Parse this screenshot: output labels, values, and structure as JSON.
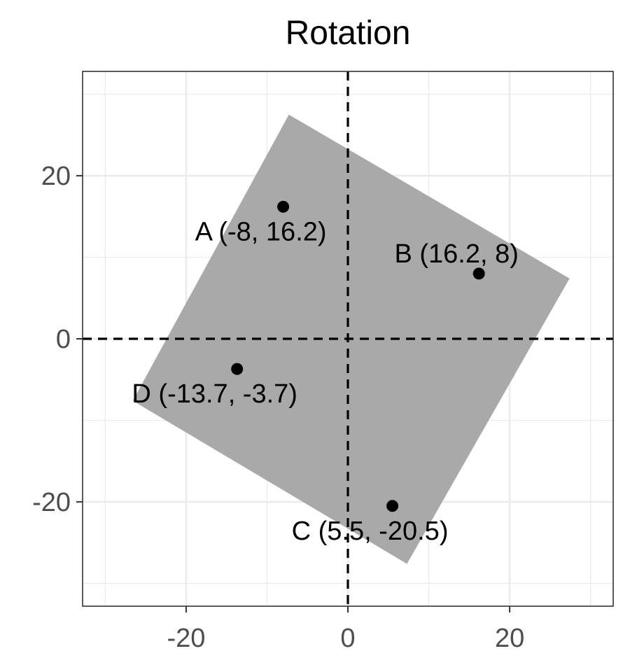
{
  "chart_data": {
    "type": "scatter",
    "title": "Rotation",
    "xlabel": "",
    "ylabel": "",
    "xlim": [
      -32.8,
      32.8
    ],
    "ylim": [
      -32.8,
      32.8
    ],
    "x_ticks": [
      -20,
      0,
      20
    ],
    "y_ticks": [
      -20,
      0,
      20
    ],
    "x_minor": [
      -30,
      -10,
      10,
      30
    ],
    "y_minor": [
      -30,
      -10,
      10,
      30
    ],
    "grid": true,
    "reference_lines": {
      "x": 0,
      "y": 0,
      "style": "dashed"
    },
    "colors": {
      "polygon": "#a9a9a9",
      "points": "#000000",
      "grid": "#ebebeb",
      "border": "#333333"
    },
    "polygon": [
      {
        "x": -7.3,
        "y": 27.5
      },
      {
        "x": 27.4,
        "y": 7.4
      },
      {
        "x": 7.3,
        "y": -27.6
      },
      {
        "x": -26.6,
        "y": -7.6
      }
    ],
    "points": [
      {
        "label": "A (-8, 16.2)",
        "x": -8,
        "y": 16.2,
        "label_pos": "below"
      },
      {
        "label": "B (16.2, 8)",
        "x": 16.2,
        "y": 8,
        "label_pos": "above"
      },
      {
        "label": "C (5.5, -20.5)",
        "x": 5.5,
        "y": -20.5,
        "label_pos": "below"
      },
      {
        "label": "D (-13.7, -3.7)",
        "x": -13.7,
        "y": -3.7,
        "label_pos": "below"
      }
    ]
  }
}
